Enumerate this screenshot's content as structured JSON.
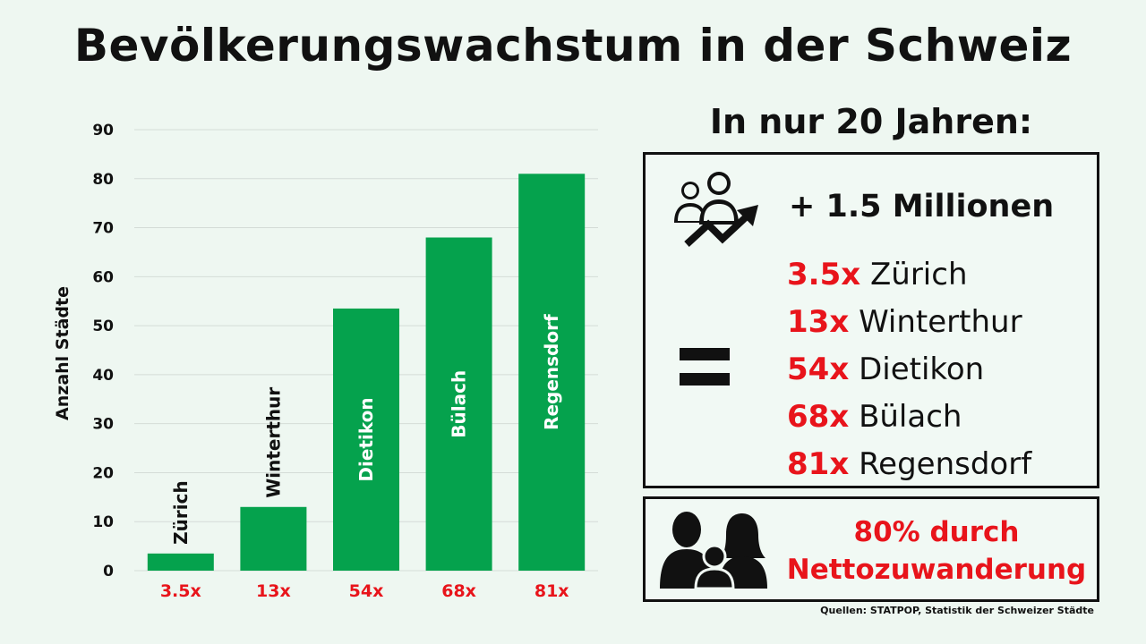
{
  "title": "Bevölkerungswachstum in der Schweiz",
  "chart_data": {
    "type": "bar",
    "ylabel": "Anzahl Städte",
    "xlabel": "",
    "ylim": [
      0,
      90
    ],
    "yticks": [
      0,
      10,
      20,
      30,
      40,
      50,
      60,
      70,
      80,
      90
    ],
    "grid": true,
    "categories": [
      "Zürich",
      "Winterthur",
      "Dietikon",
      "Bülach",
      "Regensdorf"
    ],
    "values": [
      3.5,
      13,
      53.5,
      68,
      81
    ],
    "tick_labels": [
      "3.5x",
      "13x",
      "54x",
      "68x",
      "81x"
    ],
    "bar_color": "#05a24d",
    "tick_color": "#e8141b"
  },
  "summary": {
    "heading": "In nur 20 Jahren:",
    "total": "+ 1.5 Millionen",
    "items": [
      {
        "factor": "3.5x",
        "city": "Zürich"
      },
      {
        "factor": "13x",
        "city": "Winterthur"
      },
      {
        "factor": "54x",
        "city": "Dietikon"
      },
      {
        "factor": "68x",
        "city": "Bülach"
      },
      {
        "factor": "81x",
        "city": "Regensdorf"
      }
    ]
  },
  "migration": {
    "line1": "80% durch",
    "line2": "Nettozuwanderung"
  },
  "source": "Quellen: STATPOP, Statistik der Schweizer Städte",
  "colors": {
    "accent": "#e8141b",
    "bar": "#05a24d",
    "background": "#eef7f1"
  }
}
